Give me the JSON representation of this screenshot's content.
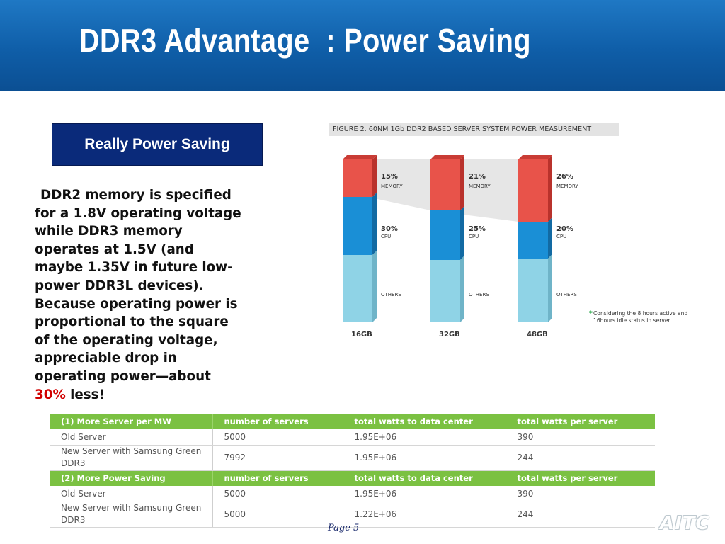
{
  "slide": {
    "title": "DDR3 Advantage  : Power Saving",
    "badge": "Really Power Saving",
    "paragraph_lines": [
      "DDR2 memory is specified",
      "for a 1.8V operating voltage",
      "while DDR3 memory",
      "operates at 1.5V (and",
      "maybe 1.35V in future low-",
      "power DDR3L devices).",
      "Because operating power is",
      "proportional to the square",
      "of the operating voltage,",
      "appreciable drop in",
      "operating power—about"
    ],
    "paragraph_highlight": "30%",
    "paragraph_tail": " less!",
    "page_label": "Page 5",
    "logo_text": "AITC"
  },
  "figure": {
    "caption": "FIGURE 2. 60NM 1Gb DDR2 BASED SERVER SYSTEM POWER MEASUREMENT",
    "note_lines": [
      "Considering the 8 hours active and",
      "16hours idle status in server"
    ],
    "colors": {
      "memory": "#e8534a",
      "cpu": "#1a8fd6",
      "others": "#8fd3e6",
      "band": "#e6e6e6"
    }
  },
  "chart_data": {
    "type": "bar",
    "stacked": true,
    "categories": [
      "16GB",
      "32GB",
      "48GB"
    ],
    "series": [
      {
        "name": "MEMORY",
        "values": [
          15,
          21,
          26
        ]
      },
      {
        "name": "CPU",
        "values": [
          30,
          25,
          20
        ]
      },
      {
        "name": "OTHERS",
        "values": [
          null,
          null,
          null
        ]
      }
    ],
    "labels": {
      "memory": [
        "15%",
        "21%",
        "26%"
      ],
      "cpu": [
        "30%",
        "25%",
        "20%"
      ],
      "memory_text": "MEMORY",
      "cpu_text": "CPU",
      "others_text": "OTHERS"
    }
  },
  "table": {
    "sections": [
      {
        "header": [
          "(1) More Server per MW",
          "number of servers",
          "total watts to data center",
          "total watts per server"
        ],
        "rows": [
          {
            "cells": [
              "Old Server",
              "5000",
              "1.95E+06",
              "390"
            ]
          },
          {
            "cells": [
              "New Server with Samsung Green DDR3",
              "7992",
              "1.95E+06",
              "244"
            ]
          }
        ]
      },
      {
        "header": [
          "(2) More Power Saving",
          "number of servers",
          "total watts to data center",
          "total watts per server"
        ],
        "rows": [
          {
            "cells": [
              "Old Server",
              "5000",
              "1.95E+06",
              "390"
            ]
          },
          {
            "cells": [
              "New Server with Samsung Green DDR3",
              "5000",
              "1.22E+06",
              "244"
            ]
          }
        ]
      }
    ]
  }
}
